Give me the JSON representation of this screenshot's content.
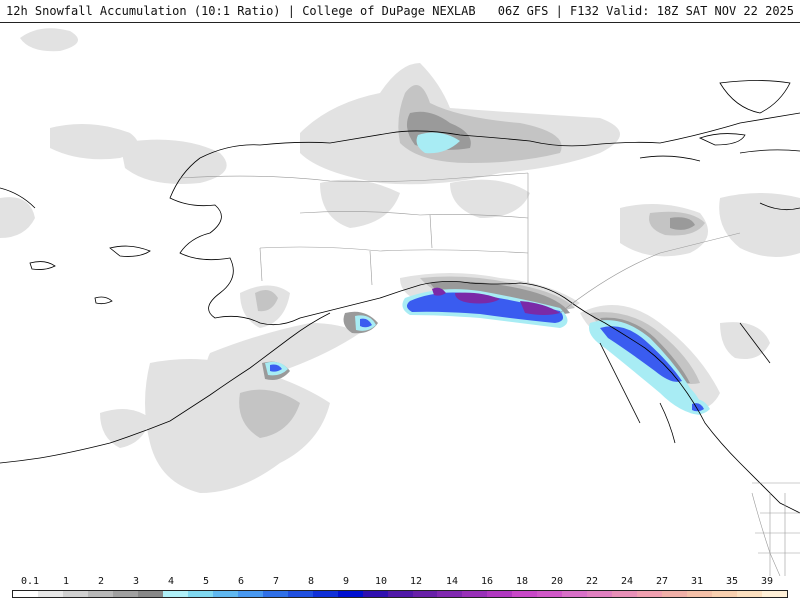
{
  "header": {
    "left_title": "12h Snowfall Accumulation (10:1 Ratio) | College of DuPage NEXLAB",
    "right_title": "06Z GFS | F132 Valid: 18Z SAT NOV 22 2025"
  },
  "legend": {
    "labels": [
      "0.1",
      "1",
      "2",
      "3",
      "4",
      "5",
      "6",
      "7",
      "8",
      "9",
      "10",
      "12",
      "14",
      "16",
      "18",
      "20",
      "22",
      "24",
      "27",
      "31",
      "35",
      "39"
    ],
    "colors": [
      "#ffffff",
      "#e8e8e8",
      "#d0d0d0",
      "#b8b8b8",
      "#a0a0a0",
      "#888888",
      "#b0f0f8",
      "#80d8f0",
      "#60b8f0",
      "#4898f0",
      "#3070e8",
      "#2050e0",
      "#1030d8",
      "#0010d0",
      "#3010b0",
      "#5018a8",
      "#6820a8",
      "#8028b0",
      "#9830b8",
      "#b038c0",
      "#c848c8",
      "#d058c8",
      "#d870c8",
      "#e080c0",
      "#e890b8",
      "#f0a0b0",
      "#f0b0a8",
      "#f4c0a8",
      "#f8d0b0",
      "#fce0c0",
      "#fff0d8"
    ],
    "accent_colors": {
      "gray_light": "#e2e2e2",
      "gray_mid": "#c4c4c4",
      "gray_dark": "#9a9a9a",
      "cyan": "#a8ecf4",
      "blue": "#3a5cf0",
      "purple": "#7a2aa8"
    }
  }
}
